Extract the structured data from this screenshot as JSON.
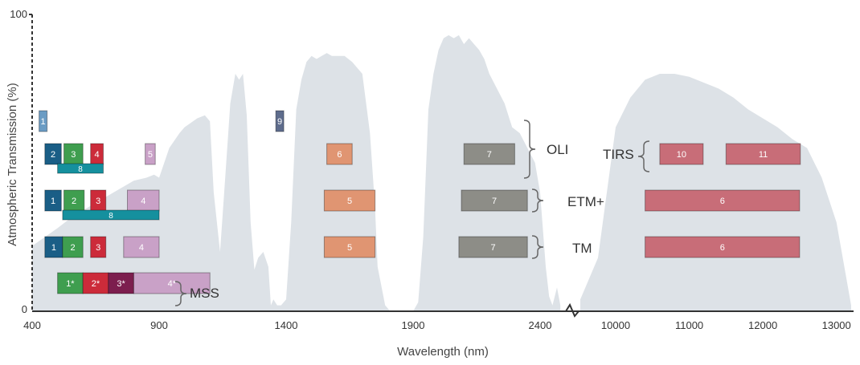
{
  "chart_data": {
    "type": "area",
    "xlabel": "Wavelength (nm)",
    "ylabel": "Atmospheric Transmission (%)",
    "ylim": [
      0,
      100
    ],
    "y_ticks": [
      "100",
      "0"
    ],
    "x_ticks": [
      "400",
      "900",
      "1400",
      "1900",
      "2400",
      "10000",
      "11000",
      "12000",
      "13000"
    ],
    "x_axis_break": "between 2400 and 10000",
    "grid": false,
    "series": [
      {
        "x": [
          400,
          500,
          560,
          620,
          680,
          720,
          760,
          800,
          850,
          880,
          900,
          940,
          980,
          1000,
          1050,
          1080,
          1100,
          1115,
          1140,
          1160,
          1180,
          1200,
          1215,
          1230,
          1245,
          1260,
          1275,
          1290,
          1310,
          1330,
          1340,
          1350,
          1365,
          1380,
          1400,
          1420,
          1440,
          1460,
          1480,
          1500,
          1520,
          1540,
          1560,
          1580,
          1600,
          1630,
          1660,
          1700,
          1730,
          1750,
          1760,
          1790,
          1810,
          1830,
          1850,
          1880,
          1900,
          1920,
          1940,
          1960,
          1980,
          2000,
          2020,
          2040,
          2060,
          2080,
          2100,
          2120,
          2140,
          2160,
          2180,
          2200,
          2230,
          2260,
          2290,
          2320,
          2350,
          2380,
          2400,
          2420,
          2450,
          2480,
          2510,
          2550,
          2580,
          9600,
          9800,
          10000,
          10200,
          10400,
          10600,
          10800,
          11000,
          11200,
          11400,
          11600,
          11800,
          12000,
          12200,
          12400,
          12600,
          12800,
          13000,
          13200
        ],
        "y": [
          22,
          28,
          32,
          35,
          38,
          40,
          42,
          44,
          45,
          46,
          45,
          55,
          60,
          62,
          65,
          66,
          64,
          40,
          20,
          45,
          70,
          80,
          78,
          80,
          66,
          30,
          14,
          18,
          20,
          15,
          2,
          4,
          2,
          2,
          4,
          30,
          68,
          78,
          84,
          86,
          85,
          86,
          87,
          86,
          86,
          86,
          84,
          80,
          60,
          35,
          15,
          2,
          0,
          0,
          0,
          0,
          0,
          3,
          25,
          68,
          80,
          88,
          92,
          93,
          92,
          93,
          90,
          92,
          90,
          88,
          85,
          80,
          75,
          70,
          62,
          60,
          55,
          50,
          40,
          30,
          15,
          5,
          2,
          8,
          2,
          4,
          18,
          62,
          72,
          78,
          80,
          80,
          79,
          77,
          75,
          72,
          68,
          65,
          62,
          58,
          55,
          45,
          30,
          2
        ]
      }
    ],
    "sensors": [
      {
        "name": "OLI",
        "bands": [
          {
            "label": "1",
            "range": [
              433,
              453
            ],
            "color": "#6b9cc4"
          },
          {
            "label": "2",
            "range": [
              450,
              515
            ],
            "color": "#1a5e86"
          },
          {
            "label": "3",
            "range": [
              525,
              600
            ],
            "color": "#3f9e4f"
          },
          {
            "label": "4",
            "range": [
              630,
              680
            ],
            "color": "#cc2b3a"
          },
          {
            "label": "5",
            "range": [
              845,
              885
            ],
            "color": "#c9a1c7"
          },
          {
            "label": "8",
            "range": [
              500,
              680
            ],
            "color": "#15909e"
          },
          {
            "label": "9",
            "range": [
              1360,
              1390
            ],
            "color": "#5e6c8c"
          },
          {
            "label": "6",
            "range": [
              1560,
              1660
            ],
            "color": "#e09572"
          },
          {
            "label": "7",
            "range": [
              2100,
              2300
            ],
            "color": "#8d8d87"
          }
        ]
      },
      {
        "name": "TIRS",
        "bands": [
          {
            "label": "10",
            "range": [
              10600,
              11190
            ],
            "color": "#c86d78"
          },
          {
            "label": "11",
            "range": [
              11500,
              12510
            ],
            "color": "#c86d78"
          }
        ]
      },
      {
        "name": "ETM+",
        "bands": [
          {
            "label": "1",
            "range": [
              450,
              515
            ],
            "color": "#1a5e86"
          },
          {
            "label": "2",
            "range": [
              525,
              605
            ],
            "color": "#3f9e4f"
          },
          {
            "label": "3",
            "range": [
              630,
              690
            ],
            "color": "#cc2b3a"
          },
          {
            "label": "4",
            "range": [
              775,
              900
            ],
            "color": "#c9a1c7"
          },
          {
            "label": "8",
            "range": [
              520,
              900
            ],
            "color": "#15909e"
          },
          {
            "label": "5",
            "range": [
              1550,
              1750
            ],
            "color": "#e09572"
          },
          {
            "label": "7",
            "range": [
              2090,
              2350
            ],
            "color": "#8d8d87"
          },
          {
            "label": "6",
            "range": [
              10400,
              12500
            ],
            "color": "#c86d78"
          }
        ]
      },
      {
        "name": "TM",
        "bands": [
          {
            "label": "1",
            "range": [
              450,
              520
            ],
            "color": "#1a5e86"
          },
          {
            "label": "2",
            "range": [
              520,
              600
            ],
            "color": "#3f9e4f"
          },
          {
            "label": "3",
            "range": [
              630,
              690
            ],
            "color": "#cc2b3a"
          },
          {
            "label": "4",
            "range": [
              760,
              900
            ],
            "color": "#c9a1c7"
          },
          {
            "label": "5",
            "range": [
              1550,
              1750
            ],
            "color": "#e09572"
          },
          {
            "label": "7",
            "range": [
              2080,
              2350
            ],
            "color": "#8d8d87"
          },
          {
            "label": "6",
            "range": [
              10400,
              12500
            ],
            "color": "#c86d78"
          }
        ]
      },
      {
        "name": "MSS",
        "bands": [
          {
            "label": "1*",
            "range": [
              500,
              600
            ],
            "color": "#3f9e4f"
          },
          {
            "label": "2*",
            "range": [
              600,
              700
            ],
            "color": "#cc2b3a"
          },
          {
            "label": "3*",
            "range": [
              700,
              800
            ],
            "color": "#7c1e4e"
          },
          {
            "label": "4*",
            "range": [
              800,
              1100
            ],
            "color": "#c9a1c7"
          }
        ]
      }
    ],
    "colors": {
      "transmission_fill": "#dde2e7",
      "axis": "#333333"
    }
  }
}
